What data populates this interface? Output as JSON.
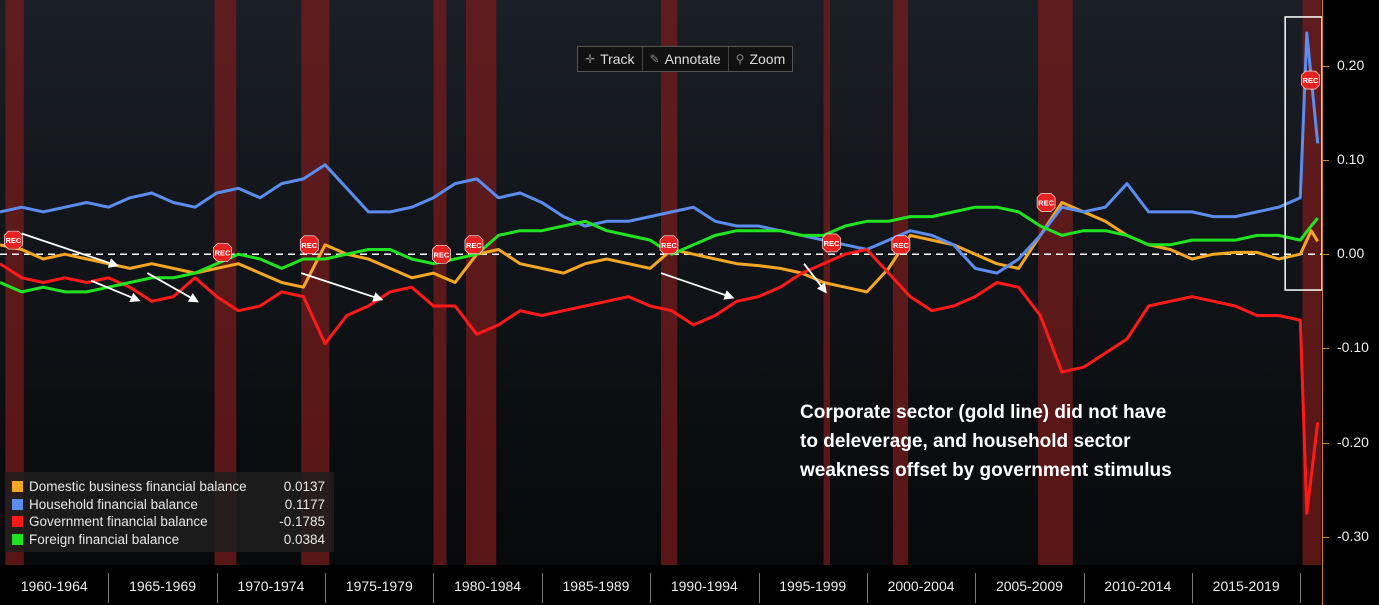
{
  "toolbar": {
    "track": "Track",
    "annotate": "Annotate",
    "zoom": "Zoom"
  },
  "legend": [
    {
      "name": "Domestic business financial balance",
      "value": "0.0137",
      "color": "#f5a623"
    },
    {
      "name": "Household financial balance",
      "value": "0.1177",
      "color": "#5b8dee"
    },
    {
      "name": "Government financial balance",
      "value": "-0.1785",
      "color": "#ff1a1a"
    },
    {
      "name": "Foreign financial balance",
      "value": "0.0384",
      "color": "#22e322"
    }
  ],
  "annotation": {
    "line1": "Corporate sector (gold line) did not have",
    "line2": "to deleverage, and household sector",
    "line3": "weakness offset by government stimulus"
  },
  "recession_label": "REC",
  "chart_data": {
    "type": "line",
    "xlim": [
      1960.0,
      2021.0
    ],
    "ylim": [
      -0.33,
      0.27
    ],
    "x_tick_labels": [
      "1960-1964",
      "1965-1969",
      "1970-1974",
      "1975-1979",
      "1980-1984",
      "1985-1989",
      "1990-1994",
      "1995-1999",
      "2000-2004",
      "2005-2009",
      "2010-2014",
      "2015-2019"
    ],
    "y_ticks": [
      0.2,
      0.1,
      0.0,
      -0.1,
      -0.2,
      -0.3
    ],
    "y_tick_labels": [
      "0.20",
      "0.10",
      "0.00",
      "-0.10",
      "-0.20",
      "-0.30"
    ],
    "zero_line": true,
    "recessions": [
      [
        1960.25,
        1961.1
      ],
      [
        1969.9,
        1970.9
      ],
      [
        1973.9,
        1975.2
      ],
      [
        1980.0,
        1980.6
      ],
      [
        1981.5,
        1982.9
      ],
      [
        1990.5,
        1991.25
      ],
      [
        1998.0,
        1998.3
      ],
      [
        2001.2,
        2001.9
      ],
      [
        2007.9,
        2009.5
      ],
      [
        2020.1,
        2020.95
      ]
    ],
    "series": [
      {
        "name": "Domestic business financial balance",
        "color": "#f5a623",
        "points": [
          [
            1960,
            0.01
          ],
          [
            1961,
            0.005
          ],
          [
            1962,
            -0.005
          ],
          [
            1963,
            0.0
          ],
          [
            1964,
            -0.005
          ],
          [
            1965,
            -0.01
          ],
          [
            1966,
            -0.015
          ],
          [
            1967,
            -0.01
          ],
          [
            1968,
            -0.015
          ],
          [
            1969,
            -0.02
          ],
          [
            1970,
            -0.015
          ],
          [
            1971,
            -0.01
          ],
          [
            1972,
            -0.02
          ],
          [
            1973,
            -0.03
          ],
          [
            1974,
            -0.035
          ],
          [
            1975,
            0.01
          ],
          [
            1976,
            0.0
          ],
          [
            1977,
            -0.005
          ],
          [
            1978,
            -0.015
          ],
          [
            1979,
            -0.025
          ],
          [
            1980,
            -0.02
          ],
          [
            1981,
            -0.03
          ],
          [
            1982,
            0.0
          ],
          [
            1983,
            0.005
          ],
          [
            1984,
            -0.01
          ],
          [
            1985,
            -0.015
          ],
          [
            1986,
            -0.02
          ],
          [
            1987,
            -0.01
          ],
          [
            1988,
            -0.005
          ],
          [
            1989,
            -0.01
          ],
          [
            1990,
            -0.015
          ],
          [
            1991,
            0.005
          ],
          [
            1992,
            0.0
          ],
          [
            1993,
            -0.005
          ],
          [
            1994,
            -0.01
          ],
          [
            1995,
            -0.012
          ],
          [
            1996,
            -0.015
          ],
          [
            1997,
            -0.02
          ],
          [
            1998,
            -0.03
          ],
          [
            1999,
            -0.035
          ],
          [
            2000,
            -0.04
          ],
          [
            2001,
            -0.015
          ],
          [
            2002,
            0.02
          ],
          [
            2003,
            0.015
          ],
          [
            2004,
            0.01
          ],
          [
            2005,
            0.0
          ],
          [
            2006,
            -0.01
          ],
          [
            2007,
            -0.015
          ],
          [
            2008,
            0.02
          ],
          [
            2009,
            0.055
          ],
          [
            2010,
            0.045
          ],
          [
            2011,
            0.035
          ],
          [
            2012,
            0.02
          ],
          [
            2013,
            0.01
          ],
          [
            2014,
            0.005
          ],
          [
            2015,
            -0.005
          ],
          [
            2016,
            0.0
          ],
          [
            2017,
            0.002
          ],
          [
            2018,
            0.002
          ],
          [
            2019,
            -0.005
          ],
          [
            2020,
            0.0
          ],
          [
            2020.5,
            0.025
          ],
          [
            2020.8,
            0.0137
          ]
        ]
      },
      {
        "name": "Household financial balance",
        "color": "#5b8dee",
        "points": [
          [
            1960,
            0.045
          ],
          [
            1961,
            0.05
          ],
          [
            1962,
            0.045
          ],
          [
            1963,
            0.05
          ],
          [
            1964,
            0.055
          ],
          [
            1965,
            0.05
          ],
          [
            1966,
            0.06
          ],
          [
            1967,
            0.065
          ],
          [
            1968,
            0.055
          ],
          [
            1969,
            0.05
          ],
          [
            1970,
            0.065
          ],
          [
            1971,
            0.07
          ],
          [
            1972,
            0.06
          ],
          [
            1973,
            0.075
          ],
          [
            1974,
            0.08
          ],
          [
            1975,
            0.095
          ],
          [
            1976,
            0.07
          ],
          [
            1977,
            0.045
          ],
          [
            1978,
            0.045
          ],
          [
            1979,
            0.05
          ],
          [
            1980,
            0.06
          ],
          [
            1981,
            0.075
          ],
          [
            1982,
            0.08
          ],
          [
            1983,
            0.06
          ],
          [
            1984,
            0.065
          ],
          [
            1985,
            0.055
          ],
          [
            1986,
            0.04
          ],
          [
            1987,
            0.03
          ],
          [
            1988,
            0.035
          ],
          [
            1989,
            0.035
          ],
          [
            1990,
            0.04
          ],
          [
            1991,
            0.045
          ],
          [
            1992,
            0.05
          ],
          [
            1993,
            0.035
          ],
          [
            1994,
            0.03
          ],
          [
            1995,
            0.03
          ],
          [
            1996,
            0.025
          ],
          [
            1997,
            0.02
          ],
          [
            1998,
            0.015
          ],
          [
            1999,
            0.01
          ],
          [
            2000,
            0.005
          ],
          [
            2001,
            0.015
          ],
          [
            2002,
            0.025
          ],
          [
            2003,
            0.02
          ],
          [
            2004,
            0.01
          ],
          [
            2005,
            -0.015
          ],
          [
            2006,
            -0.02
          ],
          [
            2007,
            -0.005
          ],
          [
            2008,
            0.02
          ],
          [
            2009,
            0.05
          ],
          [
            2010,
            0.045
          ],
          [
            2011,
            0.05
          ],
          [
            2012,
            0.075
          ],
          [
            2013,
            0.045
          ],
          [
            2014,
            0.045
          ],
          [
            2015,
            0.045
          ],
          [
            2016,
            0.04
          ],
          [
            2017,
            0.04
          ],
          [
            2018,
            0.045
          ],
          [
            2019,
            0.05
          ],
          [
            2020,
            0.06
          ],
          [
            2020.3,
            0.235
          ],
          [
            2020.8,
            0.1177
          ]
        ]
      },
      {
        "name": "Government financial balance",
        "color": "#ff1a1a",
        "points": [
          [
            1960,
            -0.01
          ],
          [
            1961,
            -0.025
          ],
          [
            1962,
            -0.03
          ],
          [
            1963,
            -0.025
          ],
          [
            1964,
            -0.03
          ],
          [
            1965,
            -0.025
          ],
          [
            1966,
            -0.035
          ],
          [
            1967,
            -0.05
          ],
          [
            1968,
            -0.045
          ],
          [
            1969,
            -0.025
          ],
          [
            1970,
            -0.045
          ],
          [
            1971,
            -0.06
          ],
          [
            1972,
            -0.055
          ],
          [
            1973,
            -0.04
          ],
          [
            1974,
            -0.045
          ],
          [
            1975,
            -0.095
          ],
          [
            1976,
            -0.065
          ],
          [
            1977,
            -0.055
          ],
          [
            1978,
            -0.04
          ],
          [
            1979,
            -0.035
          ],
          [
            1980,
            -0.055
          ],
          [
            1981,
            -0.055
          ],
          [
            1982,
            -0.085
          ],
          [
            1983,
            -0.075
          ],
          [
            1984,
            -0.06
          ],
          [
            1985,
            -0.065
          ],
          [
            1986,
            -0.06
          ],
          [
            1987,
            -0.055
          ],
          [
            1988,
            -0.05
          ],
          [
            1989,
            -0.045
          ],
          [
            1990,
            -0.055
          ],
          [
            1991,
            -0.06
          ],
          [
            1992,
            -0.075
          ],
          [
            1993,
            -0.065
          ],
          [
            1994,
            -0.05
          ],
          [
            1995,
            -0.045
          ],
          [
            1996,
            -0.035
          ],
          [
            1997,
            -0.02
          ],
          [
            1998,
            -0.01
          ],
          [
            1999,
            0.0
          ],
          [
            2000,
            0.005
          ],
          [
            2001,
            -0.02
          ],
          [
            2002,
            -0.045
          ],
          [
            2003,
            -0.06
          ],
          [
            2004,
            -0.055
          ],
          [
            2005,
            -0.045
          ],
          [
            2006,
            -0.03
          ],
          [
            2007,
            -0.035
          ],
          [
            2008,
            -0.065
          ],
          [
            2009,
            -0.125
          ],
          [
            2010,
            -0.12
          ],
          [
            2011,
            -0.105
          ],
          [
            2012,
            -0.09
          ],
          [
            2013,
            -0.055
          ],
          [
            2014,
            -0.05
          ],
          [
            2015,
            -0.045
          ],
          [
            2016,
            -0.05
          ],
          [
            2017,
            -0.055
          ],
          [
            2018,
            -0.065
          ],
          [
            2019,
            -0.065
          ],
          [
            2020,
            -0.07
          ],
          [
            2020.3,
            -0.275
          ],
          [
            2020.8,
            -0.1785
          ]
        ]
      },
      {
        "name": "Foreign financial balance",
        "color": "#22e322",
        "points": [
          [
            1960,
            -0.03
          ],
          [
            1961,
            -0.04
          ],
          [
            1962,
            -0.035
          ],
          [
            1963,
            -0.04
          ],
          [
            1964,
            -0.04
          ],
          [
            1965,
            -0.035
          ],
          [
            1966,
            -0.03
          ],
          [
            1967,
            -0.025
          ],
          [
            1968,
            -0.025
          ],
          [
            1969,
            -0.02
          ],
          [
            1970,
            -0.01
          ],
          [
            1971,
            0.0
          ],
          [
            1972,
            -0.005
          ],
          [
            1973,
            -0.015
          ],
          [
            1974,
            -0.005
          ],
          [
            1975,
            -0.005
          ],
          [
            1976,
            0.0
          ],
          [
            1977,
            0.005
          ],
          [
            1978,
            0.005
          ],
          [
            1979,
            -0.005
          ],
          [
            1980,
            -0.01
          ],
          [
            1981,
            -0.005
          ],
          [
            1982,
            0.0
          ],
          [
            1983,
            0.02
          ],
          [
            1984,
            0.025
          ],
          [
            1985,
            0.025
          ],
          [
            1986,
            0.03
          ],
          [
            1987,
            0.035
          ],
          [
            1988,
            0.025
          ],
          [
            1989,
            0.02
          ],
          [
            1990,
            0.015
          ],
          [
            1991,
            0.0
          ],
          [
            1992,
            0.01
          ],
          [
            1993,
            0.02
          ],
          [
            1994,
            0.025
          ],
          [
            1995,
            0.025
          ],
          [
            1996,
            0.025
          ],
          [
            1997,
            0.02
          ],
          [
            1998,
            0.02
          ],
          [
            1999,
            0.03
          ],
          [
            2000,
            0.035
          ],
          [
            2001,
            0.035
          ],
          [
            2002,
            0.04
          ],
          [
            2003,
            0.04
          ],
          [
            2004,
            0.045
          ],
          [
            2005,
            0.05
          ],
          [
            2006,
            0.05
          ],
          [
            2007,
            0.045
          ],
          [
            2008,
            0.03
          ],
          [
            2009,
            0.02
          ],
          [
            2010,
            0.025
          ],
          [
            2011,
            0.025
          ],
          [
            2012,
            0.02
          ],
          [
            2013,
            0.01
          ],
          [
            2014,
            0.01
          ],
          [
            2015,
            0.015
          ],
          [
            2016,
            0.015
          ],
          [
            2017,
            0.015
          ],
          [
            2018,
            0.02
          ],
          [
            2019,
            0.02
          ],
          [
            2020,
            0.015
          ],
          [
            2020.5,
            0.03
          ],
          [
            2020.8,
            0.0384
          ]
        ]
      }
    ],
    "arrows": [
      [
        1961.0,
        0.022,
        1965.4,
        -0.012
      ],
      [
        1964.2,
        -0.028,
        1966.4,
        -0.049
      ],
      [
        1966.8,
        -0.02,
        1969.1,
        -0.05
      ],
      [
        1973.9,
        -0.02,
        1977.6,
        -0.048
      ],
      [
        1990.5,
        -0.02,
        1993.8,
        -0.046
      ],
      [
        1997.1,
        -0.01,
        1998.1,
        -0.04
      ]
    ],
    "highlight_box": [
      2019.3,
      2021.0,
      -0.038,
      0.252
    ]
  }
}
